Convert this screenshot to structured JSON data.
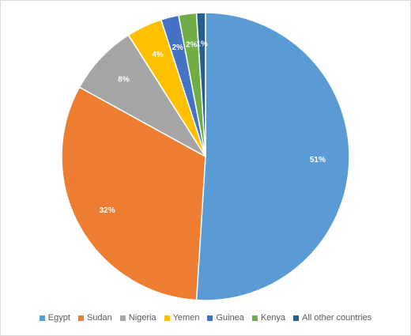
{
  "chart_data": {
    "type": "pie",
    "title": "",
    "slices": [
      {
        "label": "Egypt",
        "value": 51,
        "display": "51%",
        "color": "#5b9bd5"
      },
      {
        "label": "Sudan",
        "value": 32,
        "display": "32%",
        "color": "#ed7d31"
      },
      {
        "label": "Nigeria",
        "value": 8,
        "display": "8%",
        "color": "#a5a5a5"
      },
      {
        "label": "Yemen",
        "value": 4,
        "display": "4%",
        "color": "#ffc000"
      },
      {
        "label": "Guinea",
        "value": 2,
        "display": "2%",
        "color": "#4472c4"
      },
      {
        "label": "Kenya",
        "value": 2,
        "display": "2%",
        "color": "#70ad47"
      },
      {
        "label": "All other countries",
        "value": 1,
        "display": "1%",
        "color": "#255e91"
      }
    ],
    "start_angle_deg": 0,
    "direction": "clockwise",
    "legend_position": "bottom"
  }
}
